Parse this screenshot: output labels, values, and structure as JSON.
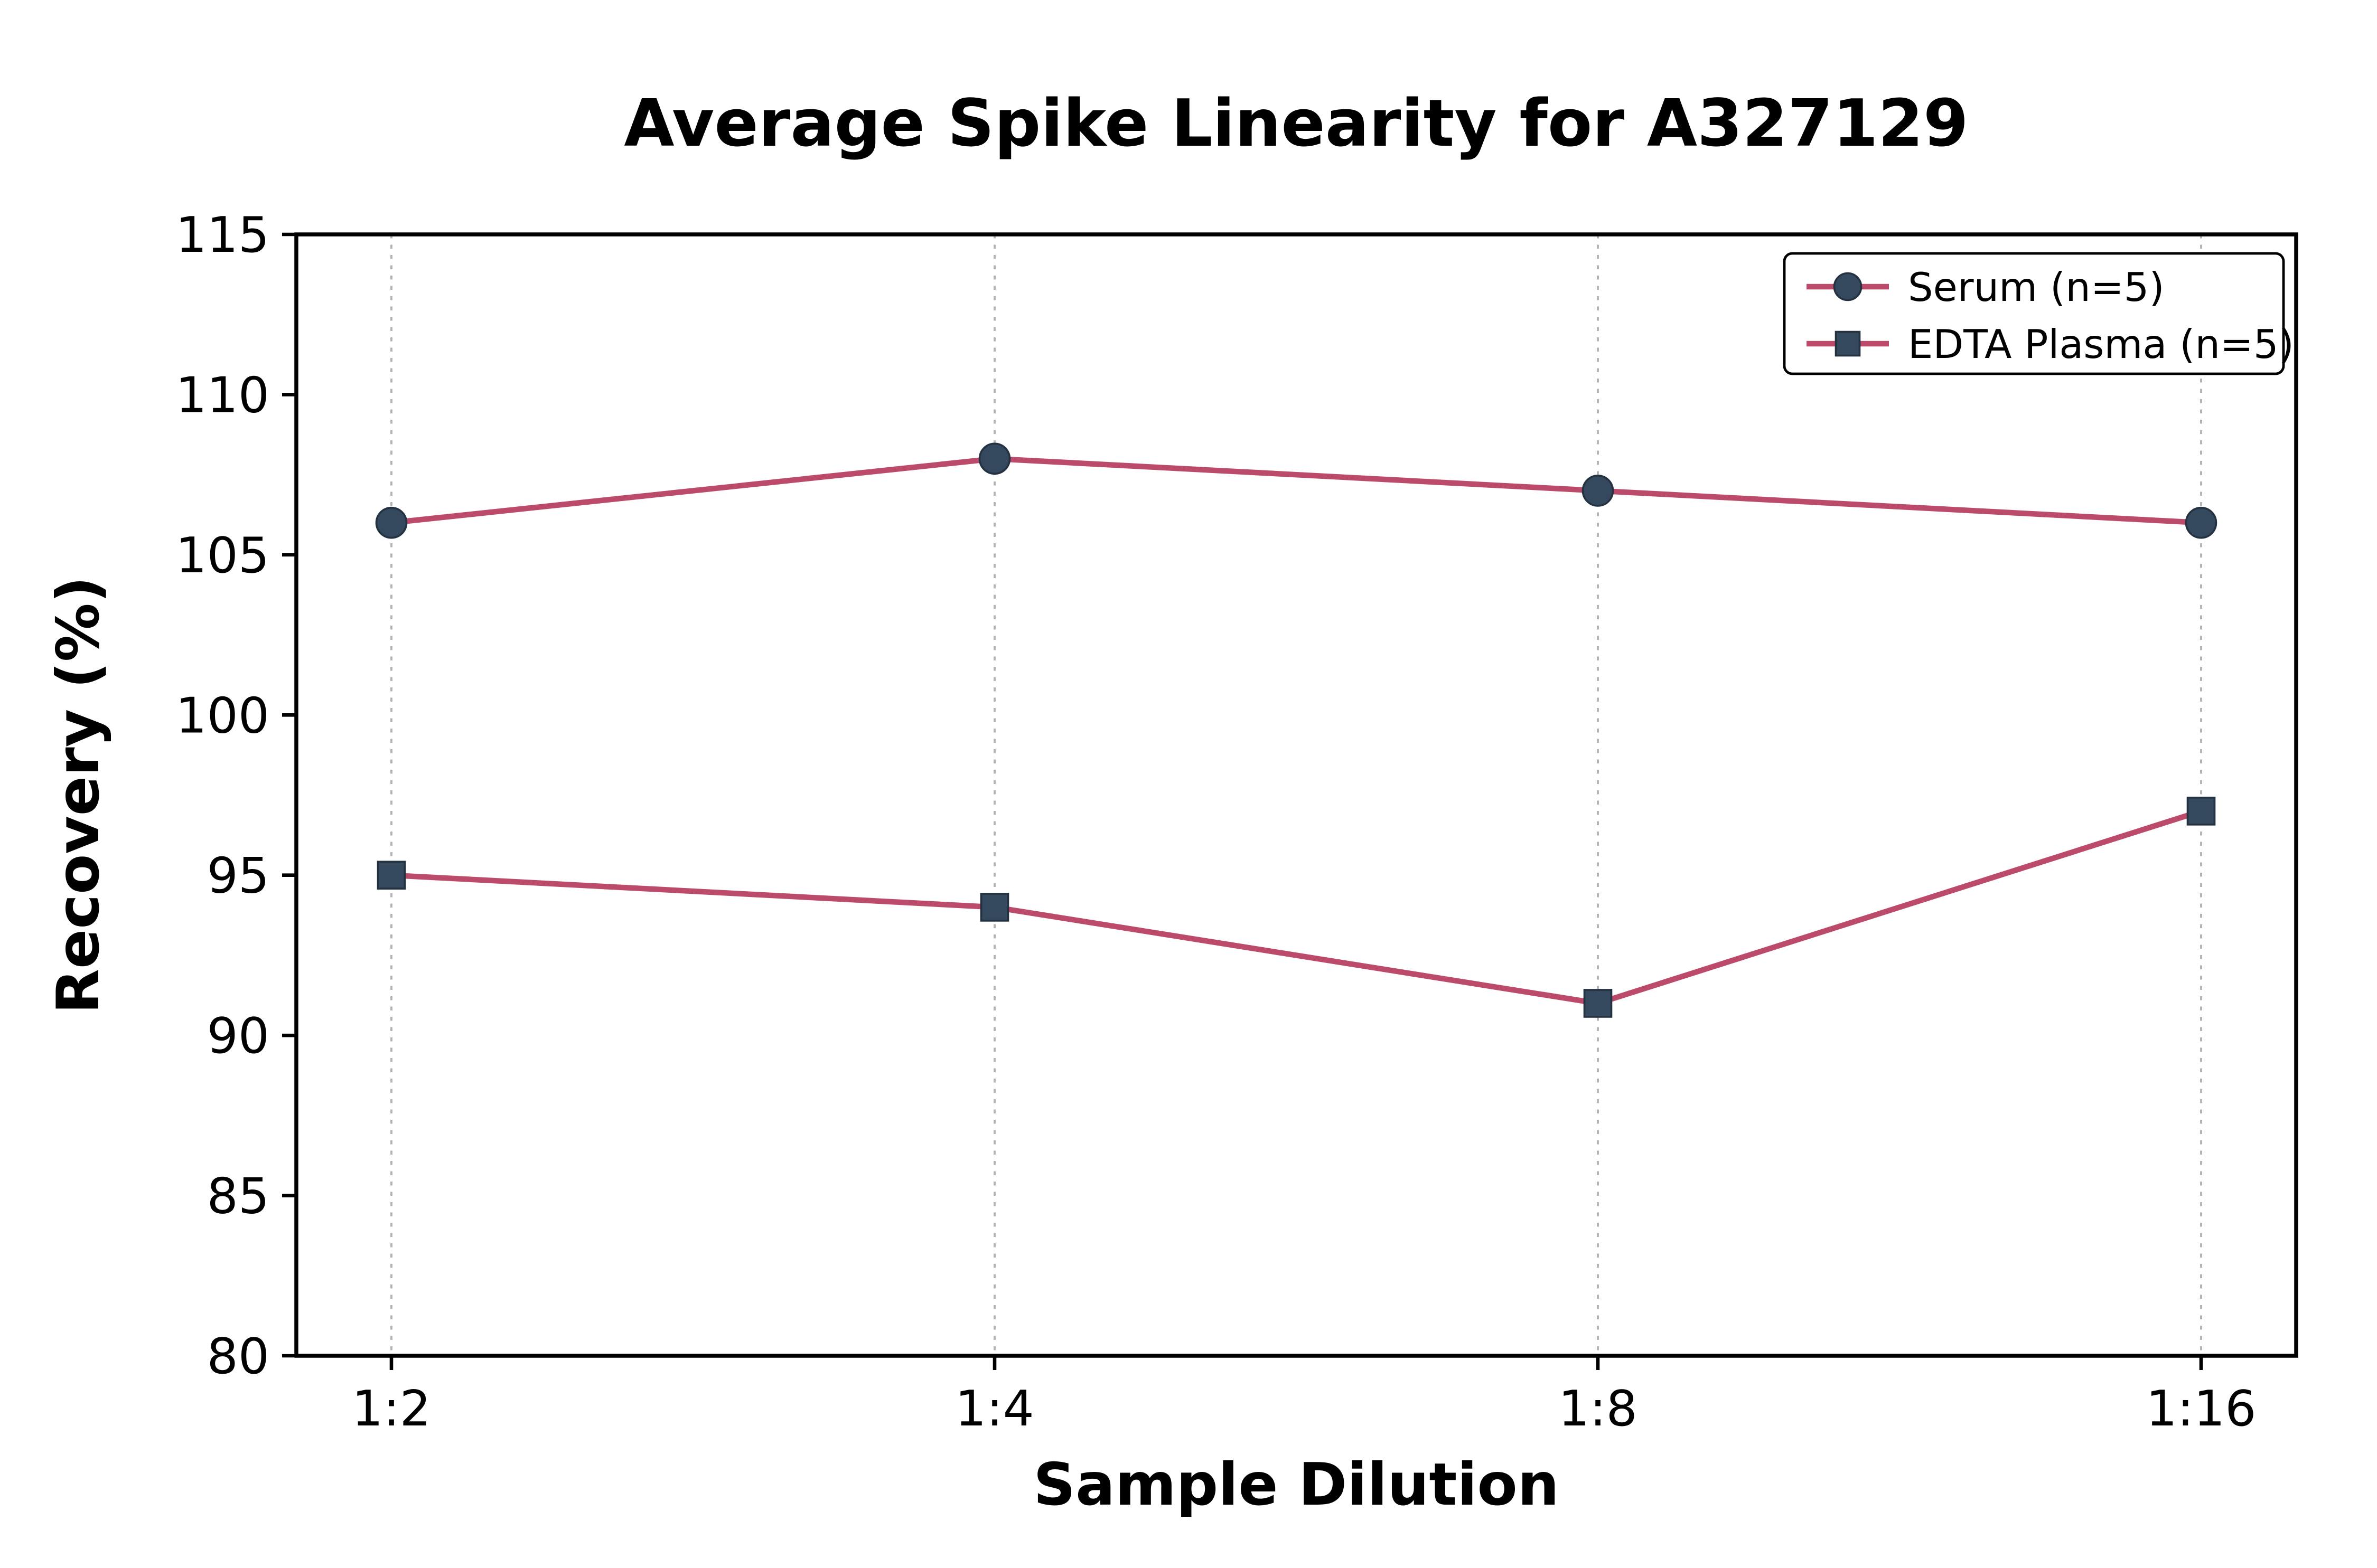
{
  "chart_data": {
    "type": "line",
    "title": "Average Spike Linearity for A327129",
    "xlabel": "Sample Dilution",
    "ylabel": "Recovery (%)",
    "categories": [
      "1:2",
      "1:4",
      "1:8",
      "1:16"
    ],
    "series": [
      {
        "name": "Serum (n=5)",
        "values": [
          106,
          108,
          107,
          106
        ],
        "color": "#bc4a6b",
        "marker": "circle",
        "marker_color": "#34495e"
      },
      {
        "name": "EDTA Plasma (n=5)",
        "values": [
          95,
          94,
          91,
          97
        ],
        "color": "#bc4a6b",
        "marker": "square",
        "marker_color": "#34495e"
      }
    ],
    "ylim": [
      80,
      115
    ],
    "yticks": [
      80,
      85,
      90,
      95,
      100,
      105,
      110,
      115
    ],
    "grid": {
      "vertical": true,
      "horizontal": false,
      "color": "#b3b3b3"
    },
    "legend": {
      "position": "upper right"
    },
    "axis_color": "#000000",
    "background": "#ffffff"
  }
}
